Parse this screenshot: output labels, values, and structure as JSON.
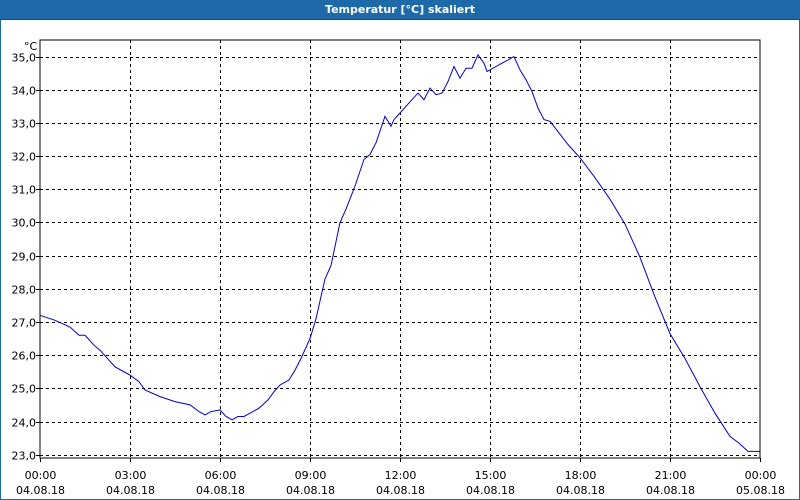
{
  "window": {
    "title": "Temperatur [°C] skaliert"
  },
  "chart_data": {
    "type": "line",
    "title": "Temperatur [°C] skaliert",
    "unit_label": "°C",
    "ylim": [
      22.9,
      35.5
    ],
    "y_ticks": [
      23,
      24,
      25,
      26,
      27,
      28,
      29,
      30,
      31,
      32,
      33,
      34,
      35
    ],
    "y_tick_labels": [
      "23,0",
      "24,0",
      "25,0",
      "26,0",
      "27,0",
      "28,0",
      "29,0",
      "30,0",
      "31,0",
      "32,0",
      "33,0",
      "34,0",
      "35,0"
    ],
    "xlim_hours": [
      0,
      24
    ],
    "x_ticks": [
      {
        "hour": 0,
        "time": "00:00",
        "date": "04.08.18"
      },
      {
        "hour": 3,
        "time": "03:00",
        "date": "04.08.18"
      },
      {
        "hour": 6,
        "time": "06:00",
        "date": "04.08.18"
      },
      {
        "hour": 9,
        "time": "09:00",
        "date": "04.08.18"
      },
      {
        "hour": 12,
        "time": "12:00",
        "date": "04.08.18"
      },
      {
        "hour": 15,
        "time": "15:00",
        "date": "04.08.18"
      },
      {
        "hour": 18,
        "time": "18:00",
        "date": "04.08.18"
      },
      {
        "hour": 21,
        "time": "21:00",
        "date": "04.08.18"
      },
      {
        "hour": 24,
        "time": "00:00",
        "date": "05.08.18"
      }
    ],
    "grid": true,
    "line_color": "#0000cc",
    "series": [
      {
        "x": [
          0,
          0.5,
          1,
          1.3,
          1.5,
          1.8,
          2,
          2.2,
          2.5,
          3,
          3.3,
          3.5,
          4,
          4.5,
          5,
          5.3,
          5.5,
          5.7,
          6,
          6.2,
          6.4,
          6.6,
          6.8,
          7,
          7.3,
          7.6,
          7.8,
          8,
          8.3,
          8.5,
          8.7,
          9,
          9.2,
          9.5,
          9.7,
          10,
          10.2,
          10.5,
          10.8,
          11,
          11.2,
          11.5,
          11.7,
          11.8,
          12,
          12.2,
          12.4,
          12.6,
          12.8,
          13,
          13.2,
          13.4,
          13.6,
          13.8,
          14,
          14.2,
          14.4,
          14.6,
          14.8,
          14.9,
          15,
          15.2,
          15.4,
          15.6,
          15.8,
          16,
          16.2,
          16.4,
          16.6,
          16.8,
          17,
          17.3,
          17.6,
          18,
          18.5,
          19,
          19.5,
          20,
          20.5,
          21,
          21.5,
          22,
          22.5,
          23,
          23.3,
          23.6,
          24
        ],
        "y": [
          27.2,
          27.05,
          26.85,
          26.6,
          26.6,
          26.3,
          26.15,
          25.95,
          25.65,
          25.4,
          25.2,
          24.95,
          24.75,
          24.6,
          24.5,
          24.3,
          24.2,
          24.3,
          24.35,
          24.15,
          24.05,
          24.15,
          24.15,
          24.25,
          24.4,
          24.65,
          24.9,
          25.1,
          25.25,
          25.55,
          25.9,
          26.5,
          27.1,
          28.3,
          28.7,
          30.0,
          30.4,
          31.1,
          31.9,
          32.05,
          32.4,
          33.2,
          32.9,
          33.1,
          33.3,
          33.5,
          33.7,
          33.9,
          33.7,
          34.05,
          33.85,
          33.9,
          34.25,
          34.7,
          34.35,
          34.65,
          34.65,
          35.05,
          34.8,
          34.55,
          34.6,
          34.7,
          34.8,
          34.9,
          35.0,
          34.6,
          34.3,
          33.95,
          33.45,
          33.1,
          33.05,
          32.7,
          32.35,
          31.95,
          31.35,
          30.7,
          29.95,
          28.95,
          27.75,
          26.65,
          25.9,
          25.05,
          24.25,
          23.55,
          23.35,
          23.1,
          23.1
        ]
      }
    ]
  }
}
